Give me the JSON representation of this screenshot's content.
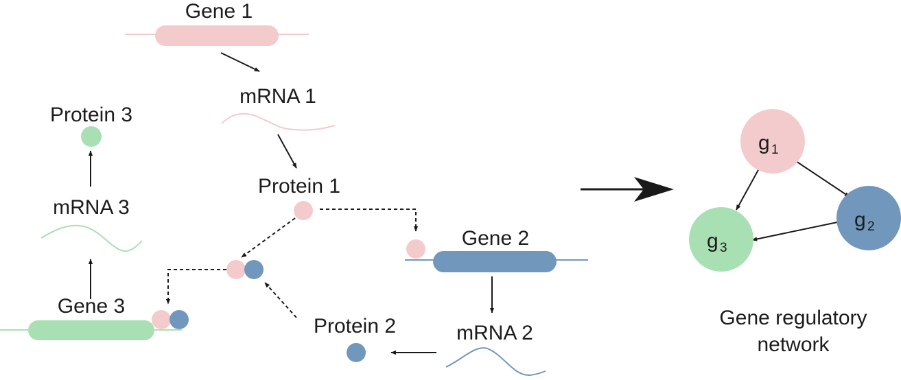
{
  "colors": {
    "pink": "#f4cbcc",
    "blue": "#7197bd",
    "green": "#a8e0b3",
    "line": "#1a1a1a"
  },
  "labels": {
    "gene1": "Gene 1",
    "mrna1": "mRNA 1",
    "protein1": "Protein 1",
    "gene2": "Gene 2",
    "mrna2": "mRNA 2",
    "protein2": "Protein 2",
    "gene3": "Gene 3",
    "mrna3": "mRNA 3",
    "protein3": "Protein 3"
  },
  "network": {
    "title_line1": "Gene regulatory",
    "title_line2": "network",
    "nodes": [
      {
        "id": "g1",
        "letter": "g",
        "index": "1",
        "color": "pink"
      },
      {
        "id": "g2",
        "letter": "g",
        "index": "2",
        "color": "blue"
      },
      {
        "id": "g3",
        "letter": "g",
        "index": "3",
        "color": "green"
      }
    ],
    "edges": [
      {
        "from": "g1",
        "to": "g2"
      },
      {
        "from": "g1",
        "to": "g3"
      },
      {
        "from": "g2",
        "to": "g3"
      }
    ]
  }
}
